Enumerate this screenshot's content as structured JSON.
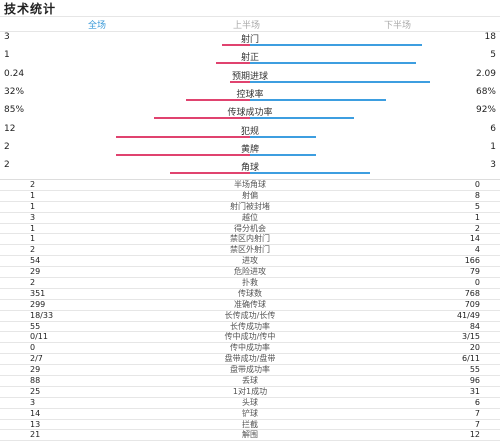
{
  "title": "技术统计",
  "tabs": [
    {
      "label": "全场"
    },
    {
      "label": "上半场"
    },
    {
      "label": "下半场"
    }
  ],
  "colors": {
    "left": "#e0436f",
    "right": "#3d9ee0",
    "active_tab": "#3a9ad9"
  },
  "bar_stats": [
    {
      "name": "射门",
      "left": "3",
      "right": "18",
      "left_frac": 0.14,
      "right_frac": 0.86
    },
    {
      "name": "射正",
      "left": "1",
      "right": "5",
      "left_frac": 0.17,
      "right_frac": 0.83
    },
    {
      "name": "预期进球",
      "left": "0.24",
      "right": "2.09",
      "left_frac": 0.1,
      "right_frac": 0.9
    },
    {
      "name": "控球率",
      "left": "32%",
      "right": "68%",
      "left_frac": 0.32,
      "right_frac": 0.68
    },
    {
      "name": "传球成功率",
      "left": "85%",
      "right": "92%",
      "left_frac": 0.48,
      "right_frac": 0.52
    },
    {
      "name": "犯规",
      "left": "12",
      "right": "6",
      "left_frac": 0.67,
      "right_frac": 0.33
    },
    {
      "name": "黄牌",
      "left": "2",
      "right": "1",
      "left_frac": 0.67,
      "right_frac": 0.33
    },
    {
      "name": "角球",
      "left": "2",
      "right": "3",
      "left_frac": 0.4,
      "right_frac": 0.6
    }
  ],
  "table_stats": [
    {
      "name": "半场角球",
      "left": "2",
      "right": "0"
    },
    {
      "name": "射偏",
      "left": "1",
      "right": "8"
    },
    {
      "name": "射门被封堵",
      "left": "1",
      "right": "5"
    },
    {
      "name": "越位",
      "left": "3",
      "right": "1"
    },
    {
      "name": "得分机会",
      "left": "1",
      "right": "2"
    },
    {
      "name": "禁区内射门",
      "left": "1",
      "right": "14"
    },
    {
      "name": "禁区外射门",
      "left": "2",
      "right": "4"
    },
    {
      "name": "进攻",
      "left": "54",
      "right": "166"
    },
    {
      "name": "危险进攻",
      "left": "29",
      "right": "79"
    },
    {
      "name": "扑救",
      "left": "2",
      "right": "0"
    },
    {
      "name": "传球数",
      "left": "351",
      "right": "768"
    },
    {
      "name": "准确传球",
      "left": "299",
      "right": "709"
    },
    {
      "name": "长传成功/长传",
      "left": "18/33",
      "right": "41/49"
    },
    {
      "name": "长传成功率",
      "left": "55",
      "right": "84"
    },
    {
      "name": "传中成功/传中",
      "left": "0/11",
      "right": "3/15"
    },
    {
      "name": "传中成功率",
      "left": "0",
      "right": "20"
    },
    {
      "name": "盘带成功/盘带",
      "left": "2/7",
      "right": "6/11"
    },
    {
      "name": "盘带成功率",
      "left": "29",
      "right": "55"
    },
    {
      "name": "丢球",
      "left": "88",
      "right": "96"
    },
    {
      "name": "1对1成功",
      "left": "25",
      "right": "31"
    },
    {
      "name": "头球",
      "left": "3",
      "right": "6"
    },
    {
      "name": "铲球",
      "left": "14",
      "right": "7"
    },
    {
      "name": "拦截",
      "left": "13",
      "right": "7"
    },
    {
      "name": "解围",
      "left": "21",
      "right": "12"
    }
  ]
}
